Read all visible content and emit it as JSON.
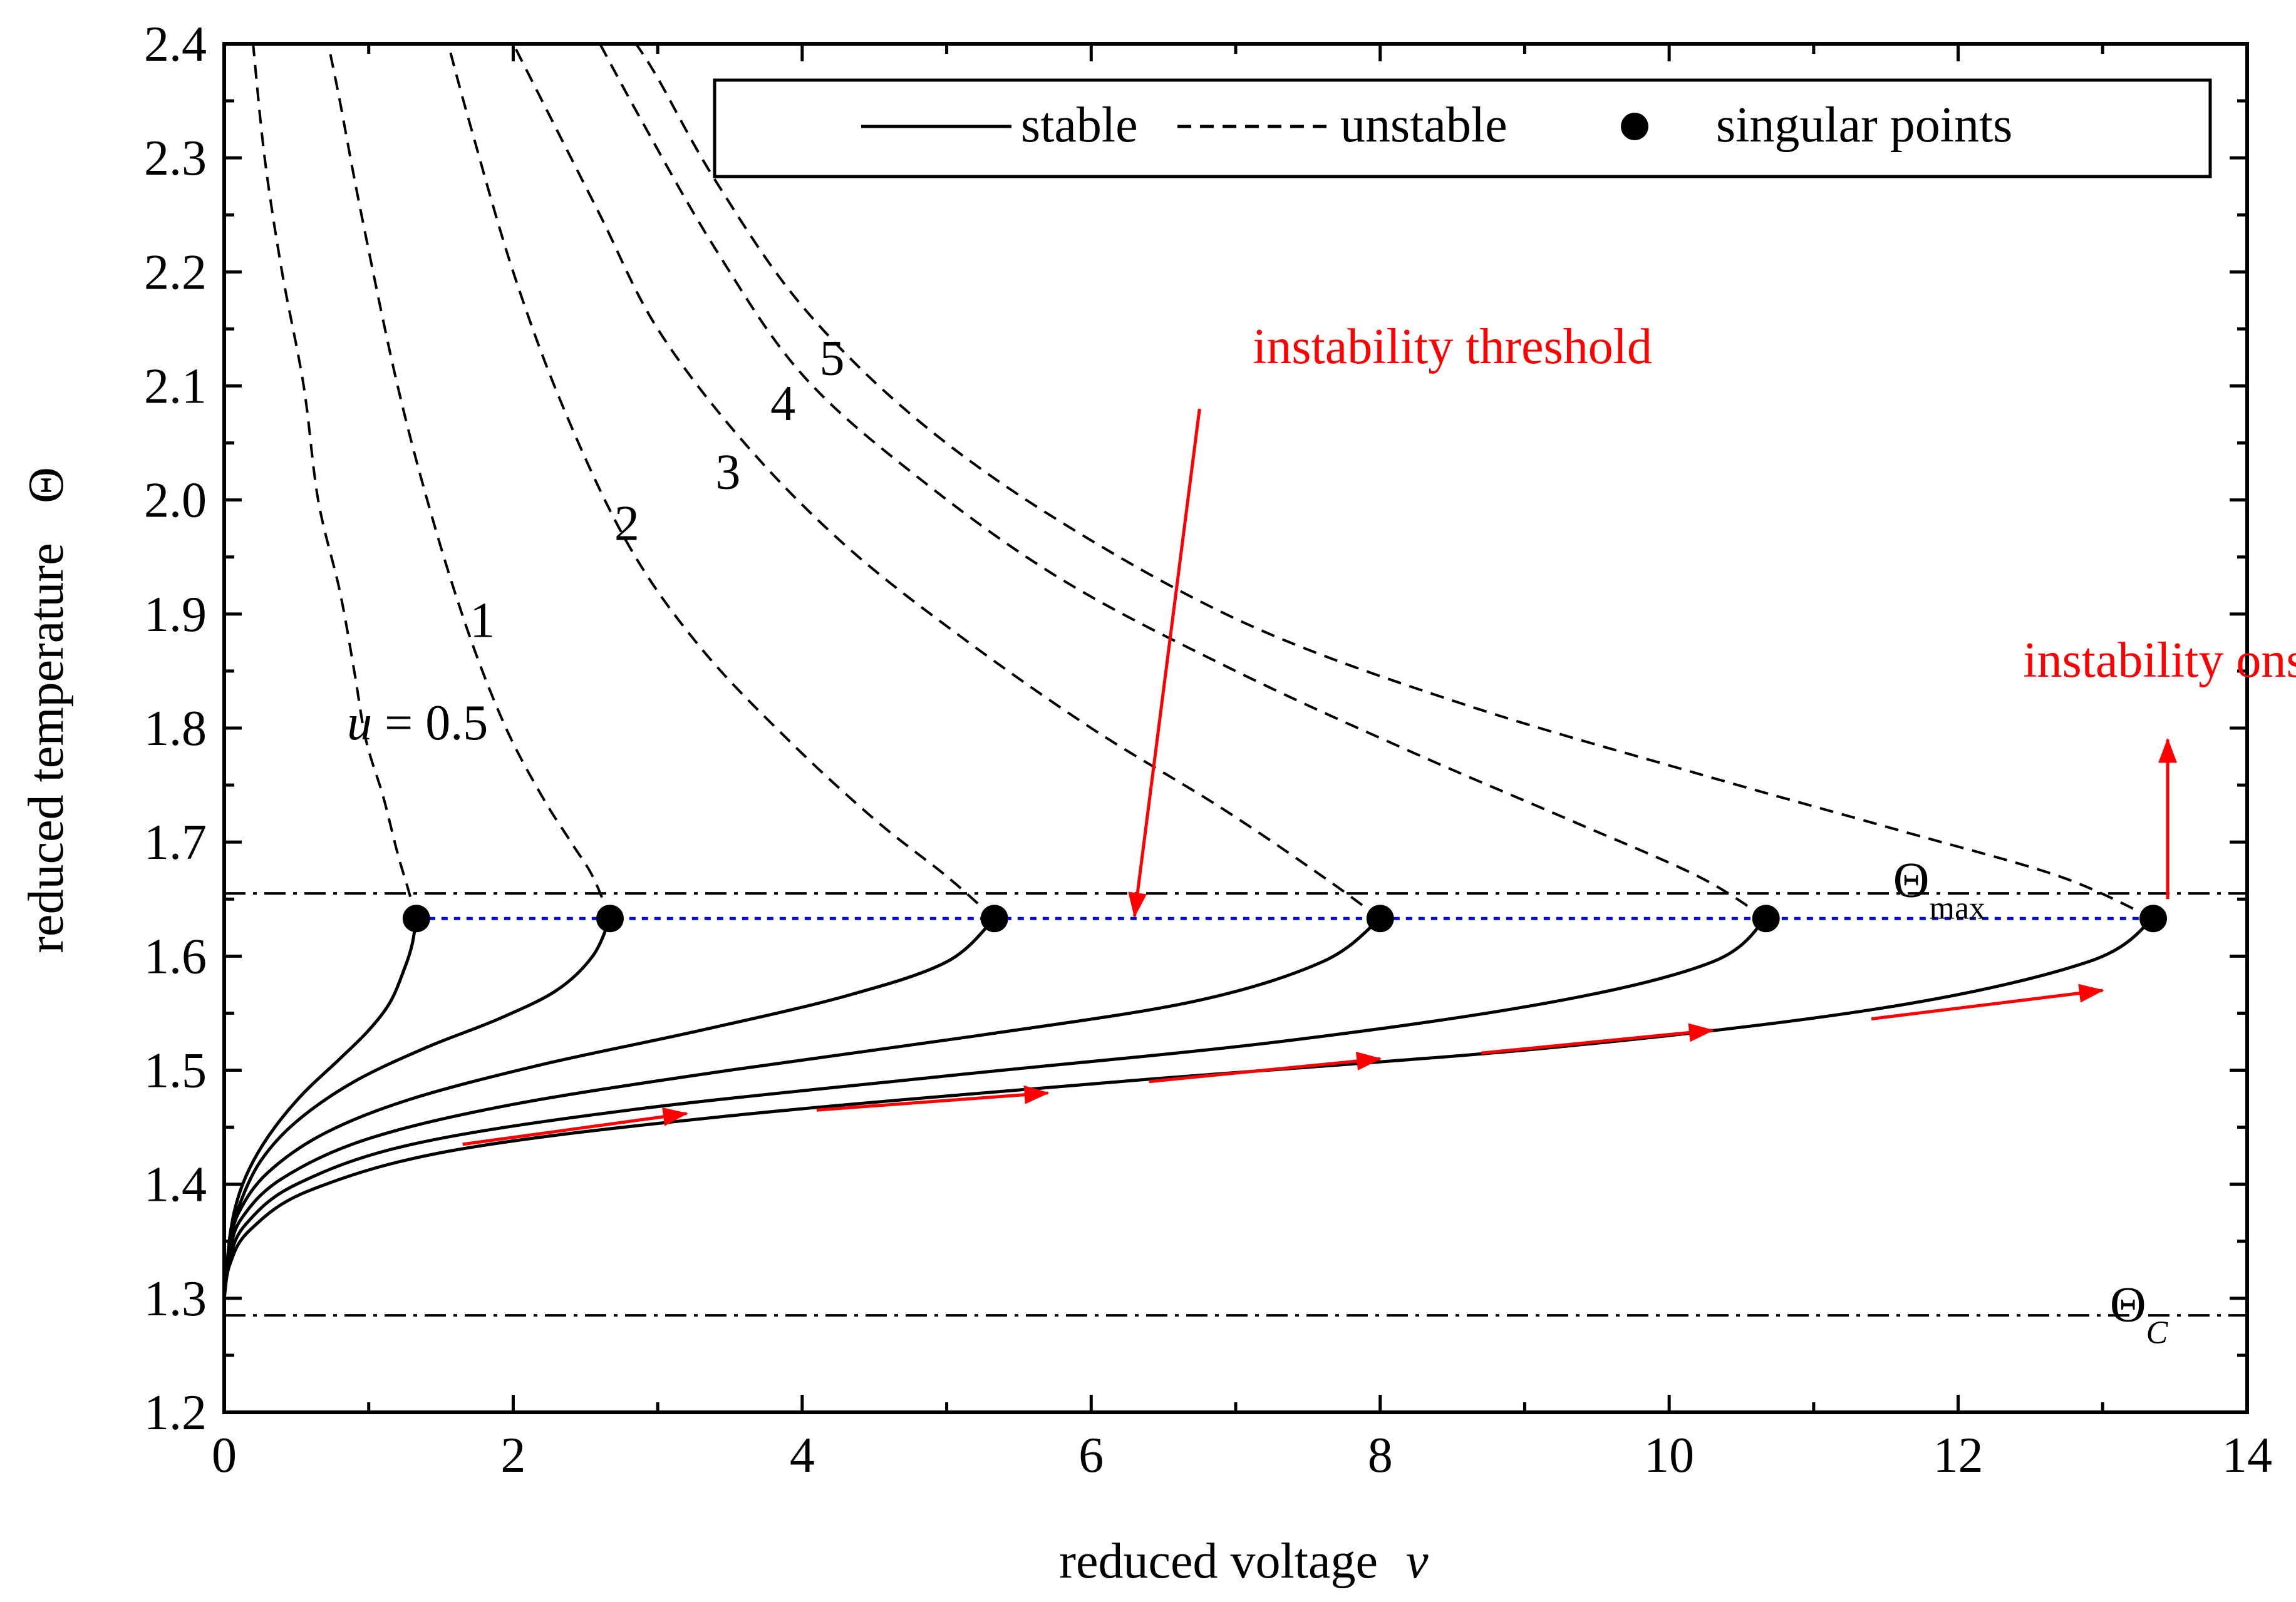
{
  "chart_data": {
    "type": "line",
    "xlabel": "reduced voltage",
    "xlabel_symbol": "v",
    "ylabel": "reduced temperature",
    "ylabel_symbol": "Θ",
    "xlim": [
      0,
      14
    ],
    "ylim": [
      1.2,
      2.4
    ],
    "x_ticks": [
      0,
      2,
      4,
      6,
      8,
      10,
      12,
      14
    ],
    "y_ticks": [
      1.2,
      1.3,
      1.4,
      1.5,
      1.6,
      1.7,
      1.8,
      1.9,
      2.0,
      2.1,
      2.2,
      2.3,
      2.4
    ],
    "x_tick_labels": [
      "0",
      "2",
      "4",
      "6",
      "8",
      "10",
      "12",
      "14"
    ],
    "y_tick_labels": [
      "1.2",
      "1.3",
      "1.4",
      "1.5",
      "1.6",
      "1.7",
      "1.8",
      "1.9",
      "2.0",
      "2.1",
      "2.2",
      "2.3",
      "2.4"
    ],
    "legend": {
      "placement": "top-right",
      "entries": [
        {
          "label": "stable",
          "style": "solid"
        },
        {
          "label": "unstable",
          "style": "dashed"
        },
        {
          "label": "singular points",
          "style": "marker"
        }
      ]
    },
    "reference_lines": [
      {
        "name": "Theta_max",
        "y": 1.655,
        "style": "dash-dot",
        "label": "Θ",
        "subscript": "max"
      },
      {
        "name": "Theta_C",
        "y": 1.285,
        "style": "dash-dot",
        "label": "Θ",
        "subscript": "C"
      },
      {
        "name": "instability-threshold-line",
        "y": 1.633,
        "style": "dotted",
        "color": "#0000ff",
        "x_range": [
          1.33,
          13.35
        ]
      }
    ],
    "series": [
      {
        "name": "u = 0.5",
        "label_prefix": "u = ",
        "label": "0.5",
        "label_pos": [
          0.85,
          1.79
        ],
        "singular_point": [
          1.33,
          1.633
        ],
        "stable": [
          [
            0,
            1.3
          ],
          [
            0.04,
            1.355
          ],
          [
            0.1,
            1.39
          ],
          [
            0.2,
            1.42
          ],
          [
            0.35,
            1.45
          ],
          [
            0.55,
            1.48
          ],
          [
            0.8,
            1.51
          ],
          [
            1.0,
            1.535
          ],
          [
            1.15,
            1.56
          ],
          [
            1.25,
            1.59
          ],
          [
            1.3,
            1.61
          ],
          [
            1.33,
            1.633
          ]
        ],
        "unstable": [
          [
            1.33,
            1.633
          ],
          [
            1.27,
            1.66
          ],
          [
            1.2,
            1.69
          ],
          [
            1.1,
            1.74
          ],
          [
            0.98,
            1.79
          ],
          [
            0.9,
            1.85
          ],
          [
            0.8,
            1.92
          ],
          [
            0.65,
            2.0
          ],
          [
            0.55,
            2.1
          ],
          [
            0.4,
            2.2
          ],
          [
            0.28,
            2.3
          ],
          [
            0.2,
            2.4
          ]
        ]
      },
      {
        "name": "u = 1",
        "label": "1",
        "label_pos": [
          1.7,
          1.88
        ],
        "singular_point": [
          2.67,
          1.633
        ],
        "stable": [
          [
            0,
            1.3
          ],
          [
            0.04,
            1.35
          ],
          [
            0.1,
            1.38
          ],
          [
            0.25,
            1.42
          ],
          [
            0.5,
            1.455
          ],
          [
            0.9,
            1.49
          ],
          [
            1.4,
            1.52
          ],
          [
            1.9,
            1.545
          ],
          [
            2.3,
            1.57
          ],
          [
            2.55,
            1.6
          ],
          [
            2.67,
            1.633
          ]
        ],
        "unstable": [
          [
            2.67,
            1.633
          ],
          [
            2.55,
            1.67
          ],
          [
            2.4,
            1.7
          ],
          [
            2.2,
            1.74
          ],
          [
            1.95,
            1.8
          ],
          [
            1.7,
            1.88
          ],
          [
            1.45,
            1.98
          ],
          [
            1.2,
            2.1
          ],
          [
            0.95,
            2.25
          ],
          [
            0.8,
            2.35
          ],
          [
            0.72,
            2.4
          ]
        ]
      },
      {
        "name": "u = 2",
        "label": "2",
        "label_pos": [
          2.7,
          1.965
        ],
        "singular_point": [
          5.33,
          1.633
        ],
        "stable": [
          [
            0,
            1.3
          ],
          [
            0.04,
            1.345
          ],
          [
            0.1,
            1.375
          ],
          [
            0.3,
            1.41
          ],
          [
            0.7,
            1.445
          ],
          [
            1.3,
            1.475
          ],
          [
            2.2,
            1.505
          ],
          [
            3.3,
            1.535
          ],
          [
            4.3,
            1.565
          ],
          [
            5.0,
            1.595
          ],
          [
            5.33,
            1.633
          ]
        ],
        "unstable": [
          [
            5.33,
            1.633
          ],
          [
            5.0,
            1.67
          ],
          [
            4.5,
            1.72
          ],
          [
            3.9,
            1.79
          ],
          [
            3.3,
            1.87
          ],
          [
            2.8,
            1.96
          ],
          [
            2.35,
            2.08
          ],
          [
            2.0,
            2.2
          ],
          [
            1.7,
            2.33
          ],
          [
            1.55,
            2.4
          ]
        ]
      },
      {
        "name": "u = 3",
        "label": "3",
        "label_pos": [
          3.4,
          2.01
        ],
        "singular_point": [
          8.0,
          1.633
        ],
        "stable": [
          [
            0,
            1.3
          ],
          [
            0.04,
            1.34
          ],
          [
            0.12,
            1.37
          ],
          [
            0.4,
            1.405
          ],
          [
            1.0,
            1.44
          ],
          [
            2.0,
            1.47
          ],
          [
            3.5,
            1.5
          ],
          [
            5.2,
            1.53
          ],
          [
            6.7,
            1.56
          ],
          [
            7.6,
            1.595
          ],
          [
            8.0,
            1.633
          ]
        ],
        "unstable": [
          [
            8.0,
            1.633
          ],
          [
            7.6,
            1.67
          ],
          [
            6.9,
            1.73
          ],
          [
            6.0,
            1.8
          ],
          [
            5.1,
            1.88
          ],
          [
            4.3,
            1.96
          ],
          [
            3.6,
            2.05
          ],
          [
            3.0,
            2.15
          ],
          [
            2.6,
            2.25
          ],
          [
            2.2,
            2.35
          ],
          [
            2.0,
            2.4
          ]
        ]
      },
      {
        "name": "u = 4",
        "label": "4",
        "label_pos": [
          3.78,
          2.07
        ],
        "singular_point": [
          10.67,
          1.633
        ],
        "stable": [
          [
            0,
            1.3
          ],
          [
            0.04,
            1.335
          ],
          [
            0.15,
            1.365
          ],
          [
            0.5,
            1.4
          ],
          [
            1.3,
            1.435
          ],
          [
            2.8,
            1.465
          ],
          [
            5.0,
            1.495
          ],
          [
            7.3,
            1.525
          ],
          [
            9.2,
            1.56
          ],
          [
            10.3,
            1.595
          ],
          [
            10.67,
            1.633
          ]
        ],
        "unstable": [
          [
            10.67,
            1.633
          ],
          [
            10.2,
            1.67
          ],
          [
            9.3,
            1.72
          ],
          [
            8.2,
            1.78
          ],
          [
            7.0,
            1.85
          ],
          [
            5.8,
            1.93
          ],
          [
            4.8,
            2.02
          ],
          [
            4.0,
            2.11
          ],
          [
            3.4,
            2.22
          ],
          [
            2.9,
            2.33
          ],
          [
            2.6,
            2.4
          ]
        ]
      },
      {
        "name": "u = 5",
        "label": "5",
        "label_pos": [
          4.12,
          2.11
        ],
        "singular_point": [
          13.35,
          1.633
        ],
        "stable": [
          [
            0,
            1.3
          ],
          [
            0.04,
            1.33
          ],
          [
            0.18,
            1.36
          ],
          [
            0.6,
            1.395
          ],
          [
            1.6,
            1.43
          ],
          [
            3.5,
            1.46
          ],
          [
            6.2,
            1.49
          ],
          [
            9.2,
            1.52
          ],
          [
            11.5,
            1.555
          ],
          [
            12.9,
            1.595
          ],
          [
            13.35,
            1.633
          ]
        ],
        "unstable": [
          [
            13.35,
            1.633
          ],
          [
            12.7,
            1.67
          ],
          [
            11.6,
            1.71
          ],
          [
            10.2,
            1.76
          ],
          [
            8.6,
            1.82
          ],
          [
            7.1,
            1.89
          ],
          [
            5.8,
            1.98
          ],
          [
            4.8,
            2.07
          ],
          [
            4.0,
            2.17
          ],
          [
            3.4,
            2.28
          ],
          [
            3.0,
            2.37
          ],
          [
            2.85,
            2.4
          ]
        ]
      }
    ],
    "annotations": [
      {
        "name": "instability-threshold",
        "text": "instability threshold",
        "color": "#ff0000",
        "text_pos": [
          8.5,
          2.12
        ],
        "arrow_from": [
          6.75,
          2.08
        ],
        "arrow_to": [
          6.3,
          1.635
        ]
      },
      {
        "name": "instability-onset",
        "text": "instability onset",
        "color": "#ff0000",
        "text_pos": [
          12.45,
          1.845
        ],
        "arrow_from": [
          13.45,
          1.65
        ],
        "arrow_to": [
          13.45,
          1.79
        ]
      },
      {
        "name": "theta-max-label",
        "text": "Θ",
        "subscript": "max",
        "pos": [
          11.55,
          1.652
        ]
      },
      {
        "name": "theta-c-label",
        "text": "Θ",
        "subscript": "C",
        "pos": [
          13.05,
          1.28
        ]
      }
    ],
    "direction_arrows": [
      {
        "from": [
          1.65,
          1.435
        ],
        "to": [
          3.2,
          1.462
        ]
      },
      {
        "from": [
          4.1,
          1.465
        ],
        "to": [
          5.7,
          1.48
        ]
      },
      {
        "from": [
          6.4,
          1.49
        ],
        "to": [
          8.0,
          1.51
        ]
      },
      {
        "from": [
          8.7,
          1.515
        ],
        "to": [
          10.3,
          1.535
        ]
      },
      {
        "from": [
          11.4,
          1.545
        ],
        "to": [
          13.0,
          1.57
        ]
      }
    ]
  }
}
